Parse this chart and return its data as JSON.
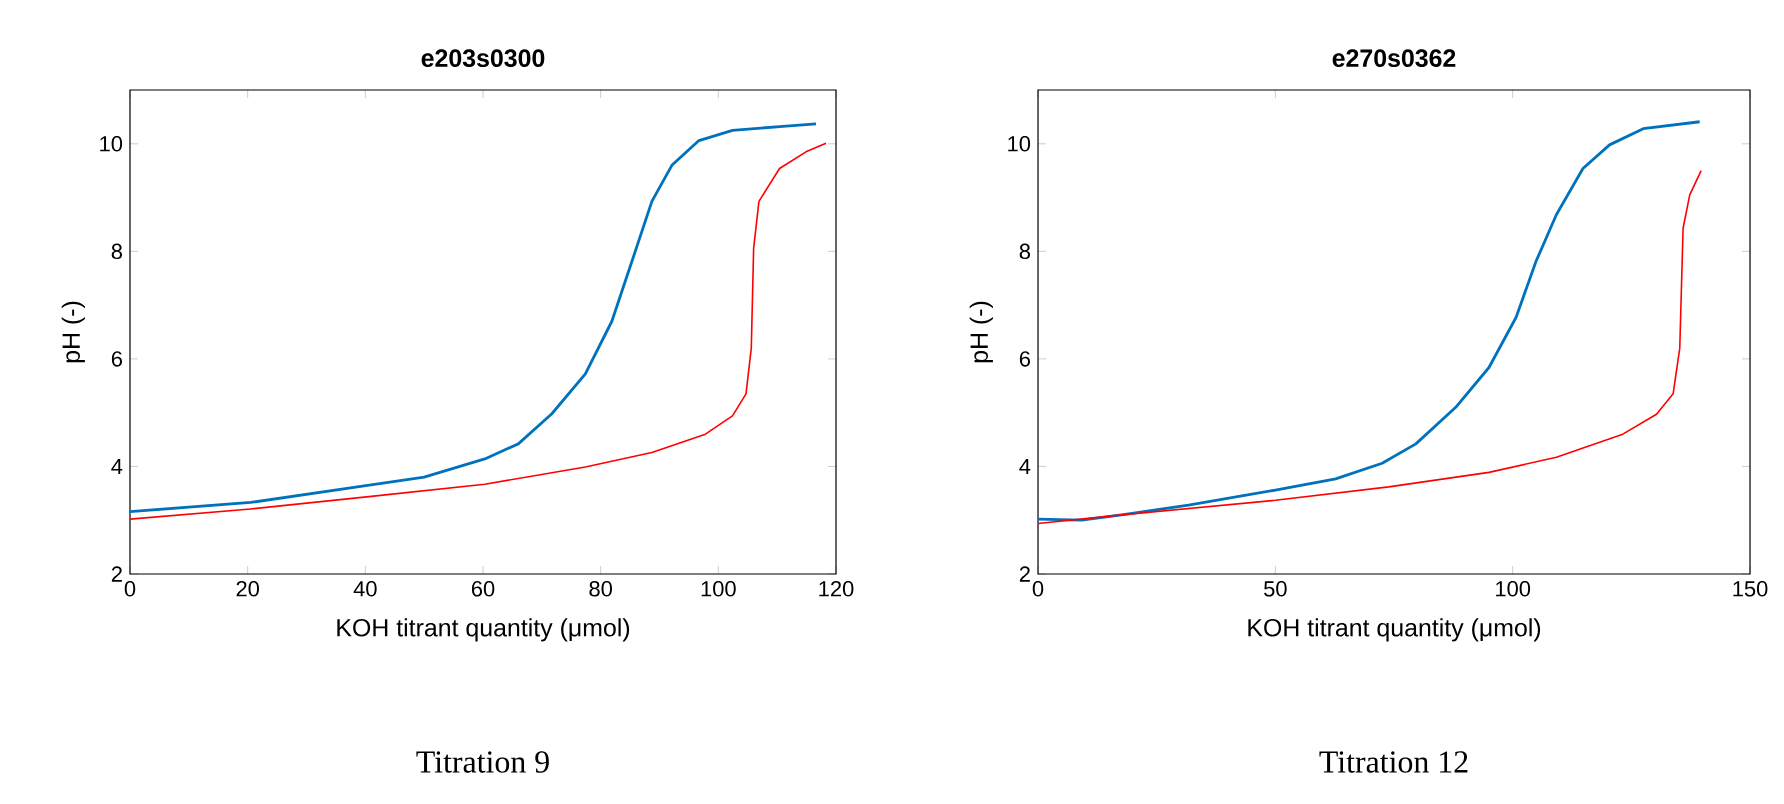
{
  "chart_data": [
    {
      "type": "line",
      "title": "e203s0300",
      "xlabel": "KOH titrant quantity (μmol)",
      "ylabel": "pH (-)",
      "xlim": [
        0,
        120
      ],
      "ylim": [
        2,
        11
      ],
      "xticks": [
        0,
        20,
        40,
        60,
        80,
        100,
        120
      ],
      "yticks": [
        2,
        4,
        6,
        8,
        10
      ],
      "annotations": [
        "Titration 9"
      ],
      "series": [
        {
          "color": "#0072bd",
          "x": [
            0,
            20.5,
            39.8,
            50,
            60.3,
            66,
            71.7,
            77.4,
            81.9,
            85.3,
            88.7,
            92.1,
            96.7,
            102.4,
            111.5,
            116.6
          ],
          "values": [
            3.16,
            3.33,
            3.64,
            3.8,
            4.14,
            4.42,
            4.98,
            5.72,
            6.7,
            7.81,
            8.93,
            9.6,
            10.06,
            10.25,
            10.33,
            10.37
          ]
        },
        {
          "color": "#ff0000",
          "x": [
            0,
            20.5,
            39.8,
            60.3,
            77.4,
            88.7,
            97.8,
            102.4,
            104.7,
            105.6,
            106,
            106.9,
            110.4,
            114.9,
            118.3
          ],
          "values": [
            3.02,
            3.21,
            3.43,
            3.67,
            3.99,
            4.26,
            4.6,
            4.94,
            5.35,
            6.2,
            8.06,
            8.93,
            9.54,
            9.85,
            10.01
          ]
        }
      ]
    },
    {
      "type": "line",
      "title": "e270s0362",
      "xlabel": "KOH titrant quantity (μmol)",
      "ylabel": "pH (-)",
      "xlim": [
        0,
        150
      ],
      "ylim": [
        2,
        11
      ],
      "xticks": [
        0,
        50,
        100,
        150
      ],
      "yticks": [
        2,
        4,
        6,
        8,
        10
      ],
      "annotations": [
        "Titration 12"
      ],
      "series": [
        {
          "color": "#0072bd",
          "x": [
            0,
            9.2,
            17.6,
            31.7,
            50,
            62.7,
            72.5,
            79.6,
            88,
            95,
            100.7,
            104.9,
            109.2,
            114.8,
            120.4,
            127.5,
            139.4
          ],
          "values": [
            3.02,
            3.0,
            3.1,
            3.28,
            3.56,
            3.77,
            4.06,
            4.42,
            5.1,
            5.84,
            6.77,
            7.81,
            8.68,
            9.54,
            9.98,
            10.28,
            10.41
          ]
        },
        {
          "color": "#ff0000",
          "x": [
            0,
            17.6,
            50,
            73.9,
            95,
            109.2,
            123.2,
            130.3,
            133.8,
            135.2,
            135.9,
            137.3,
            139.7
          ],
          "values": [
            2.94,
            3.1,
            3.37,
            3.62,
            3.89,
            4.17,
            4.6,
            4.97,
            5.35,
            6.2,
            8.43,
            9.05,
            9.5
          ]
        }
      ]
    }
  ]
}
